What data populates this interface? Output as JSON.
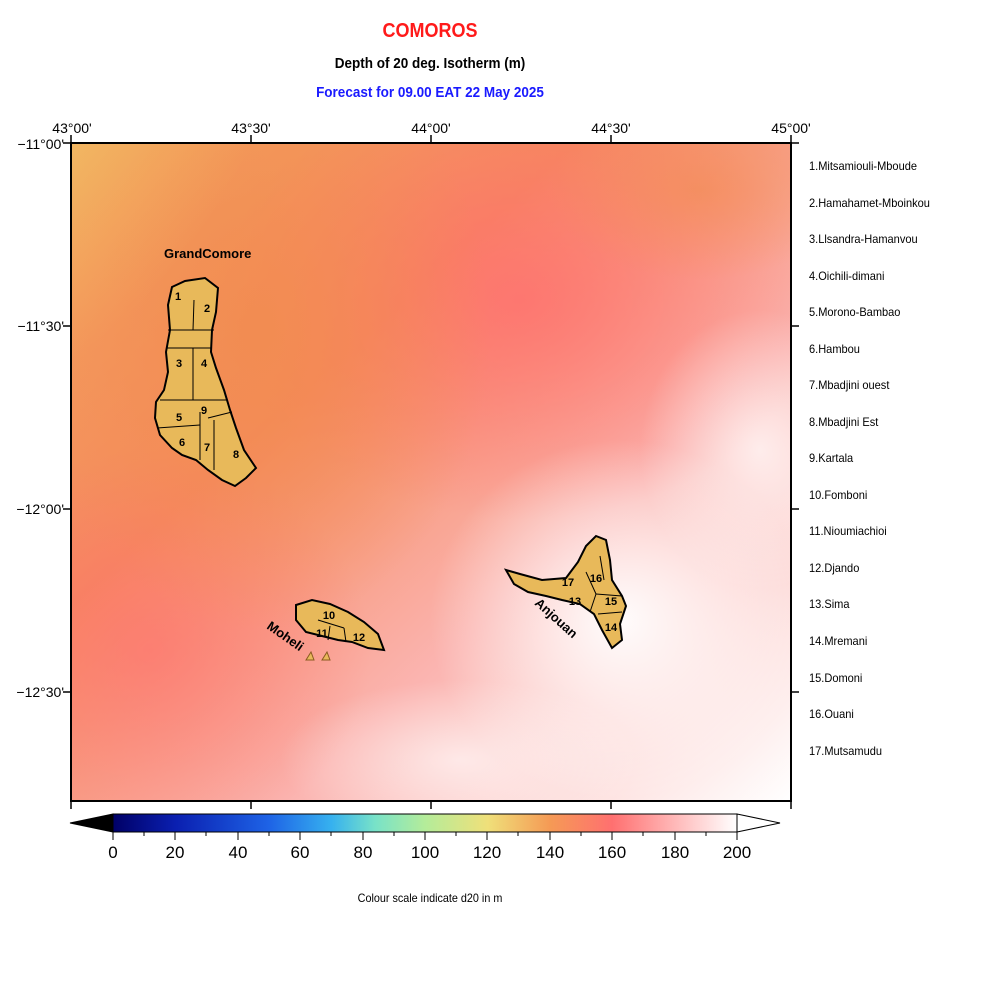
{
  "title": "COMOROS",
  "subtitle": "Depth of 20 deg. Isotherm (m)",
  "forecast": "Forecast for  09.00 EAT 22 May 2025",
  "colors": {
    "title": "#ff1a1a",
    "forecast": "#1a1aff",
    "land": "#e8b95a"
  },
  "lon_ticks": [
    "43°00'",
    "43°30'",
    "44°00'",
    "44°30'",
    "45°00'"
  ],
  "lat_ticks": [
    "−11°00'",
    "−11°30'",
    "−12°00'",
    "−12°30'"
  ],
  "islands": {
    "grand": "GrandComore",
    "moheli": "Moheli",
    "anjouan": "Anjouan"
  },
  "region_numbers": [
    "1",
    "2",
    "3",
    "4",
    "5",
    "6",
    "7",
    "8",
    "9",
    "10",
    "11",
    "12",
    "13",
    "14",
    "15",
    "16",
    "17"
  ],
  "legend": [
    "1.Mitsamiouli-Mboude",
    "2.Hamahamet-Mboinkou",
    "3.Llsandra-Hamanvou",
    "4.Oichili-dimani",
    "5.Morono-Bambao",
    "6.Hambou",
    "7.Mbadjini ouest",
    "8.Mbadjini Est",
    "9.Kartala",
    "10.Fomboni",
    "11.Nioumiachioi",
    "12.Djando",
    "13.Sima",
    "14.Mremani",
    "15.Domoni",
    "16.Ouani",
    "17.Mutsamudu"
  ],
  "colorbar": {
    "min": 0,
    "max": 200,
    "labels": [
      "0",
      "20",
      "40",
      "60",
      "80",
      "100",
      "120",
      "140",
      "160",
      "180",
      "200"
    ],
    "note": "Colour scale indicate d20 in m"
  }
}
